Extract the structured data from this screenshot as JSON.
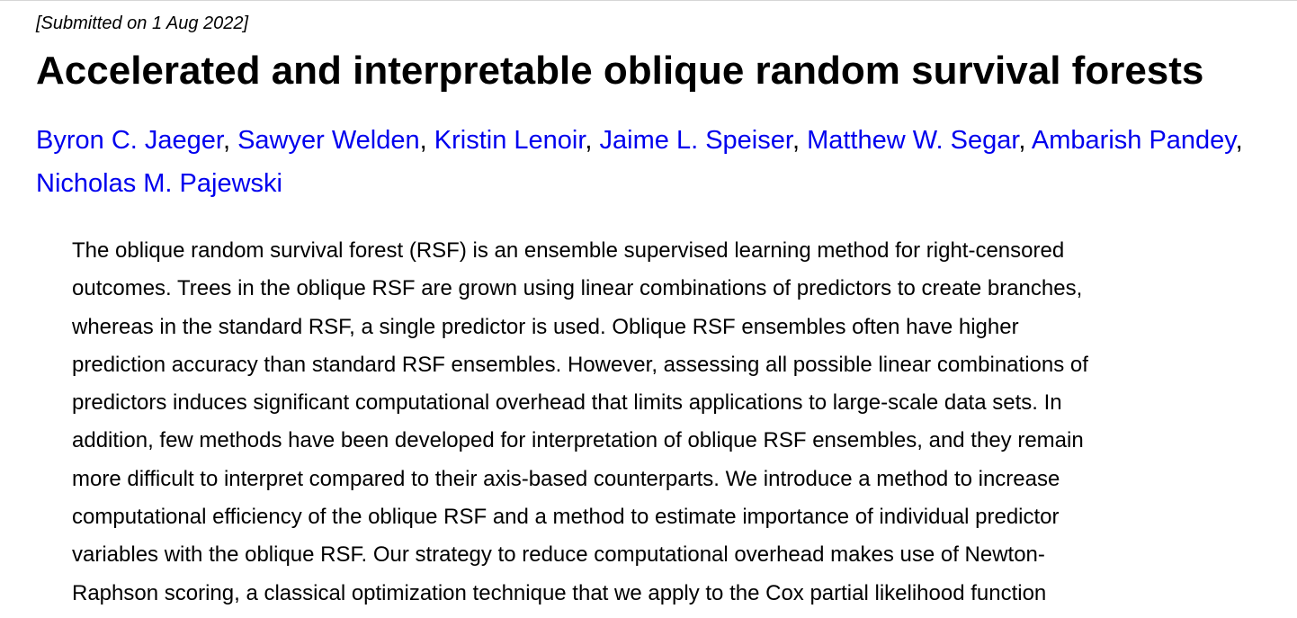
{
  "paper": {
    "dateline": "[Submitted on 1 Aug 2022]",
    "title": "Accelerated and interpretable oblique random survival forests",
    "authors": [
      "Byron C. Jaeger",
      "Sawyer Welden",
      "Kristin Lenoir",
      "Jaime L. Speiser",
      "Matthew W. Segar",
      "Ambarish Pandey",
      "Nicholas M. Pajewski"
    ],
    "author_separator": ", ",
    "abstract_lines": [
      "The oblique random survival forest (RSF) is an ensemble supervised learning method for right-censored",
      "outcomes. Trees in the oblique RSF are grown using linear combinations of predictors to create branches,",
      "whereas in the standard RSF, a single predictor is used. Oblique RSF ensembles often have higher",
      "prediction accuracy than standard RSF ensembles. However, assessing all possible linear combinations of",
      "predictors induces significant computational overhead that limits applications to large-scale data sets. In",
      "addition, few methods have been developed for interpretation of oblique RSF ensembles, and they remain",
      "more difficult to interpret compared to their axis-based counterparts. We introduce a method to increase",
      "computational efficiency of the oblique RSF and a method to estimate importance of individual predictor",
      "variables with the oblique RSF. Our strategy to reduce computational overhead makes use of Newton-",
      "Raphson scoring, a classical optimization technique that we apply to the Cox partial likelihood function"
    ]
  },
  "colors": {
    "link": "#0000ee",
    "text": "#000000",
    "background": "#ffffff"
  }
}
